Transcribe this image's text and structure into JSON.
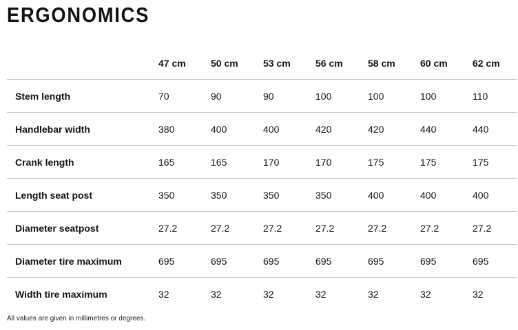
{
  "header": {
    "title": "ERGONOMICS"
  },
  "table": {
    "columns": [
      "47 cm",
      "50 cm",
      "53 cm",
      "56 cm",
      "58 cm",
      "60 cm",
      "62 cm"
    ],
    "rows": [
      {
        "label": "Stem length",
        "values": [
          "70",
          "90",
          "90",
          "100",
          "100",
          "100",
          "110"
        ]
      },
      {
        "label": "Handlebar width",
        "values": [
          "380",
          "400",
          "400",
          "420",
          "420",
          "440",
          "440"
        ]
      },
      {
        "label": "Crank length",
        "values": [
          "165",
          "165",
          "170",
          "170",
          "175",
          "175",
          "175"
        ]
      },
      {
        "label": "Length seat post",
        "values": [
          "350",
          "350",
          "350",
          "350",
          "400",
          "400",
          "400"
        ]
      },
      {
        "label": "Diameter seatpost",
        "values": [
          "27.2",
          "27.2",
          "27.2",
          "27.2",
          "27.2",
          "27.2",
          "27.2"
        ]
      },
      {
        "label": "Diameter tire maximum",
        "values": [
          "695",
          "695",
          "695",
          "695",
          "695",
          "695",
          "695"
        ]
      },
      {
        "label": "Width tire maximum",
        "values": [
          "32",
          "32",
          "32",
          "32",
          "32",
          "32",
          "32"
        ]
      }
    ]
  },
  "footnote": "All values are given in millimetres or degrees."
}
